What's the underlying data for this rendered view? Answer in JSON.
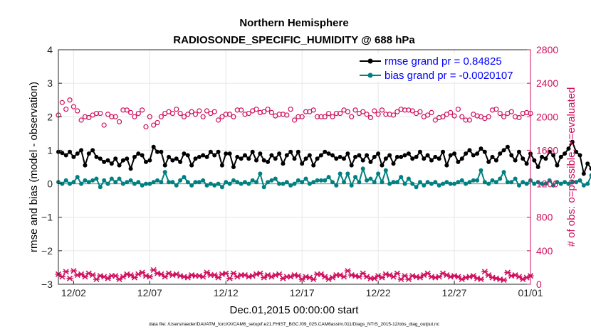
{
  "chart_data": {
    "type": "line",
    "title": "Northern Hemisphere",
    "subtitle": "RADIOSONDE_SPECIFIC_HUMIDITY @ 688 hPa",
    "xlabel": "Dec.01,2015 00:00:00 start",
    "ylabel": "rmse and bias (model - observation)",
    "ylabel_right": "# of obs: o=possible; ×=evaluated",
    "footnote": "data file: /Users/raeder/DAI/ATM_forcXX/CAM6_setup/f.e21.FHIST_BGC.f09_025.CAM6assim.011/Diags_NTrS_2015-12/obs_diag_output.nc",
    "xlim": [
      0,
      31
    ],
    "ylim": [
      -3,
      4
    ],
    "ylim_right": [
      0,
      2800
    ],
    "grid": true,
    "legend_position": "top-right",
    "x_ticks": [
      {
        "value": 1,
        "label": "12/02"
      },
      {
        "value": 6,
        "label": "12/07"
      },
      {
        "value": 11,
        "label": "12/12"
      },
      {
        "value": 16,
        "label": "12/17"
      },
      {
        "value": 21,
        "label": "12/22"
      },
      {
        "value": 26,
        "label": "12/27"
      },
      {
        "value": 31,
        "label": "01/01"
      }
    ],
    "y_ticks": [
      4,
      3,
      2,
      1,
      0,
      -1,
      -2,
      -3
    ],
    "y_ticks_right": [
      2800,
      2400,
      2000,
      1600,
      1200,
      800,
      400,
      0
    ],
    "colors": {
      "rmse": "#000000",
      "bias": "#008080",
      "obs": "#d0105e",
      "legend_text": "#0000ff",
      "zero_line": "#888888"
    },
    "x_step": 0.25,
    "series": [
      {
        "name": "rmse grand pr = 0.84825",
        "axis": "left",
        "values": [
          0.95,
          0.92,
          0.85,
          0.95,
          0.8,
          0.9,
          1.0,
          0.55,
          0.9,
          1.0,
          0.8,
          0.75,
          0.65,
          0.7,
          0.6,
          0.75,
          0.55,
          0.7,
          0.75,
          0.45,
          0.8,
          0.9,
          0.85,
          0.65,
          0.7,
          1.1,
          0.95,
          0.95,
          0.55,
          0.8,
          0.7,
          0.75,
          0.65,
          0.9,
          0.85,
          0.55,
          0.75,
          0.8,
          0.85,
          0.8,
          0.95,
          0.85,
          0.95,
          0.55,
          0.9,
          0.9,
          0.5,
          0.8,
          0.75,
          0.85,
          0.75,
          0.95,
          0.7,
          0.9,
          0.7,
          0.65,
          0.85,
          0.75,
          0.9,
          0.6,
          0.85,
          0.95,
          0.75,
          0.95,
          0.6,
          0.75,
          0.85,
          0.55,
          0.75,
          0.85,
          0.95,
          0.9,
          0.85,
          0.75,
          0.8,
          0.75,
          0.9,
          0.55,
          0.8,
          0.85,
          0.7,
          0.85,
          0.65,
          0.8,
          0.9,
          0.55,
          0.75,
          0.85,
          0.6,
          0.8,
          0.8,
          0.85,
          0.9,
          0.75,
          0.8,
          0.95,
          0.75,
          0.85,
          0.7,
          0.8,
          0.75,
          0.95,
          0.55,
          0.85,
          0.9,
          0.65,
          0.75,
          0.9,
          1.0,
          0.85,
          0.9,
          1.05,
          0.95,
          0.65,
          0.8,
          0.7,
          0.9,
          1.0,
          1.1,
          0.85,
          0.7,
          0.95,
          0.75,
          0.6,
          0.9,
          0.7,
          0.5,
          0.8,
          0.75,
          0.95,
          0.85,
          0.55,
          0.8,
          0.9,
          1.05,
          1.25,
          0.95,
          0.85,
          0.3,
          0.6,
          0.45,
          0.8,
          0.55,
          0.8,
          0.75,
          0.8,
          0.3,
          0.8,
          0.8,
          0.85,
          0.9,
          0.65
        ]
      },
      {
        "name": "bias grand pr = -0.0020107",
        "axis": "left",
        "values": [
          0.05,
          0.0,
          0.1,
          0.0,
          0.05,
          0.2,
          0.0,
          0.1,
          0.05,
          0.1,
          0.15,
          -0.1,
          0.1,
          0.0,
          0.15,
          0.05,
          0.15,
          0.0,
          0.05,
          0.1,
          0.0,
          0.05,
          -0.05,
          0.0,
          0.0,
          0.05,
          0.1,
          0.05,
          0.35,
          0.05,
          0.05,
          -0.05,
          0.1,
          0.2,
          0.05,
          -0.05,
          0.05,
          0.05,
          0.1,
          -0.05,
          0.0,
          -0.05,
          0.0,
          -0.1,
          0.05,
          0.0,
          0.1,
          0.05,
          0.0,
          0.05,
          0.0,
          0.1,
          0.05,
          0.3,
          -0.1,
          0.05,
          0.1,
          0.15,
          0.0,
          0.0,
          0.05,
          -0.05,
          0.0,
          0.1,
          0.05,
          0.15,
          0.0,
          0.05,
          0.1,
          0.1,
          0.1,
          0.2,
          0.05,
          -0.05,
          0.3,
          0.05,
          0.3,
          -0.05,
          0.2,
          0.05,
          0.45,
          0.1,
          0.15,
          0.05,
          0.3,
          0.05,
          0.4,
          0.0,
          0.05,
          0.05,
          0.2,
          0.0,
          0.15,
          0.0,
          -0.1,
          0.05,
          -0.05,
          0.05,
          0.0,
          0.05,
          -0.05,
          0.0,
          0.05,
          0.0,
          0.0,
          0.05,
          0.1,
          0.0,
          0.05,
          0.1,
          0.1,
          0.4,
          0.05,
          0.0,
          0.1,
          0.05,
          0.15,
          0.35,
          0.05,
          0.05,
          0.15,
          -0.05,
          0.05,
          0.0,
          0.1,
          0.0,
          0.05,
          0.0,
          0.0,
          0.1,
          -0.05,
          0.05,
          0.0,
          0.05,
          0.0,
          0.05,
          0.05,
          0.1,
          -0.05,
          0.0,
          0.25,
          0.05,
          0.1,
          0.0,
          0.2,
          0.05,
          0.15,
          0.25,
          0.0,
          0.15,
          0.0,
          0.1,
          0.05,
          0.25
        ]
      },
      {
        "name": "# obs possible",
        "axis": "right",
        "marker": "circle",
        "values": [
          2020,
          2170,
          2090,
          2200,
          2120,
          2070,
          1960,
          2000,
          1990,
          2020,
          2040,
          2040,
          1900,
          2030,
          2000,
          2000,
          1940,
          2080,
          2080,
          2050,
          2000,
          2040,
          2080,
          1880,
          2000,
          1900,
          1930,
          2000,
          2040,
          2060,
          2040,
          2090,
          2040,
          2000,
          2030,
          2060,
          2030,
          2070,
          2000,
          2070,
          2040,
          2060,
          1960,
          2000,
          2030,
          2030,
          2000,
          2080,
          2080,
          2030,
          2040,
          2070,
          2090,
          2050,
          2060,
          2090,
          2050,
          2010,
          2030,
          2030,
          2020,
          2090,
          1960,
          2000,
          2000,
          2060,
          2060,
          2080,
          2000,
          2000,
          2000,
          2040,
          2000,
          2040,
          2040,
          2080,
          2060,
          2000,
          2080,
          2040,
          2060,
          2030,
          1990,
          2070,
          2030,
          2080,
          2030,
          2030,
          2020,
          2060,
          2090,
          2080,
          2080,
          2070,
          2040,
          2060,
          2000,
          2020,
          2050,
          1960,
          1990,
          2000,
          2030,
          2050,
          2010,
          2090,
          2000,
          1960,
          1960,
          2030,
          2010,
          2000,
          1980,
          2000,
          2080,
          2090,
          2040,
          2000,
          2040,
          2060,
          2000,
          1990,
          2040,
          2050,
          2040,
          1970,
          2060,
          1960,
          2000,
          2000,
          2040,
          1960,
          2060,
          2000,
          2000,
          2040,
          2090,
          2000,
          2000,
          1990,
          2000,
          2000,
          2000,
          2000,
          2020,
          2020,
          2090,
          2060,
          2060,
          2080,
          2000,
          2000,
          2000,
          2080,
          2040,
          2110
        ]
      },
      {
        "name": "# obs evaluated",
        "axis": "right",
        "marker": "x",
        "values": [
          120,
          90,
          150,
          70,
          160,
          110,
          120,
          90,
          130,
          110,
          60,
          100,
          90,
          70,
          100,
          100,
          60,
          90,
          120,
          110,
          80,
          120,
          140,
          100,
          90,
          170,
          130,
          120,
          90,
          130,
          110,
          120,
          100,
          90,
          80,
          110,
          100,
          100,
          90,
          140,
          110,
          110,
          80,
          120,
          130,
          70,
          130,
          90,
          110,
          110,
          90,
          100,
          120,
          130,
          80,
          110,
          90,
          110,
          120,
          70,
          90,
          90,
          110,
          100,
          60,
          90,
          80,
          60,
          120,
          120,
          90,
          60,
          80,
          110,
          110,
          90,
          160,
          110,
          100,
          90,
          130,
          90,
          70,
          70,
          100,
          80,
          120,
          110,
          90,
          130,
          60,
          100,
          60,
          100,
          90,
          80,
          110,
          130,
          90,
          80,
          90,
          130,
          110,
          90,
          100,
          90,
          60,
          80,
          90,
          100,
          70,
          60,
          150,
          110,
          80,
          70,
          60,
          50,
          140,
          100,
          110,
          90,
          60,
          80,
          100,
          110,
          80,
          60,
          100,
          80,
          110,
          80,
          50,
          60,
          90,
          60,
          70,
          80,
          90,
          60,
          90,
          60,
          110,
          80,
          60,
          60,
          130,
          60,
          70,
          100,
          60,
          110,
          60,
          40,
          90,
          80
        ]
      }
    ]
  }
}
